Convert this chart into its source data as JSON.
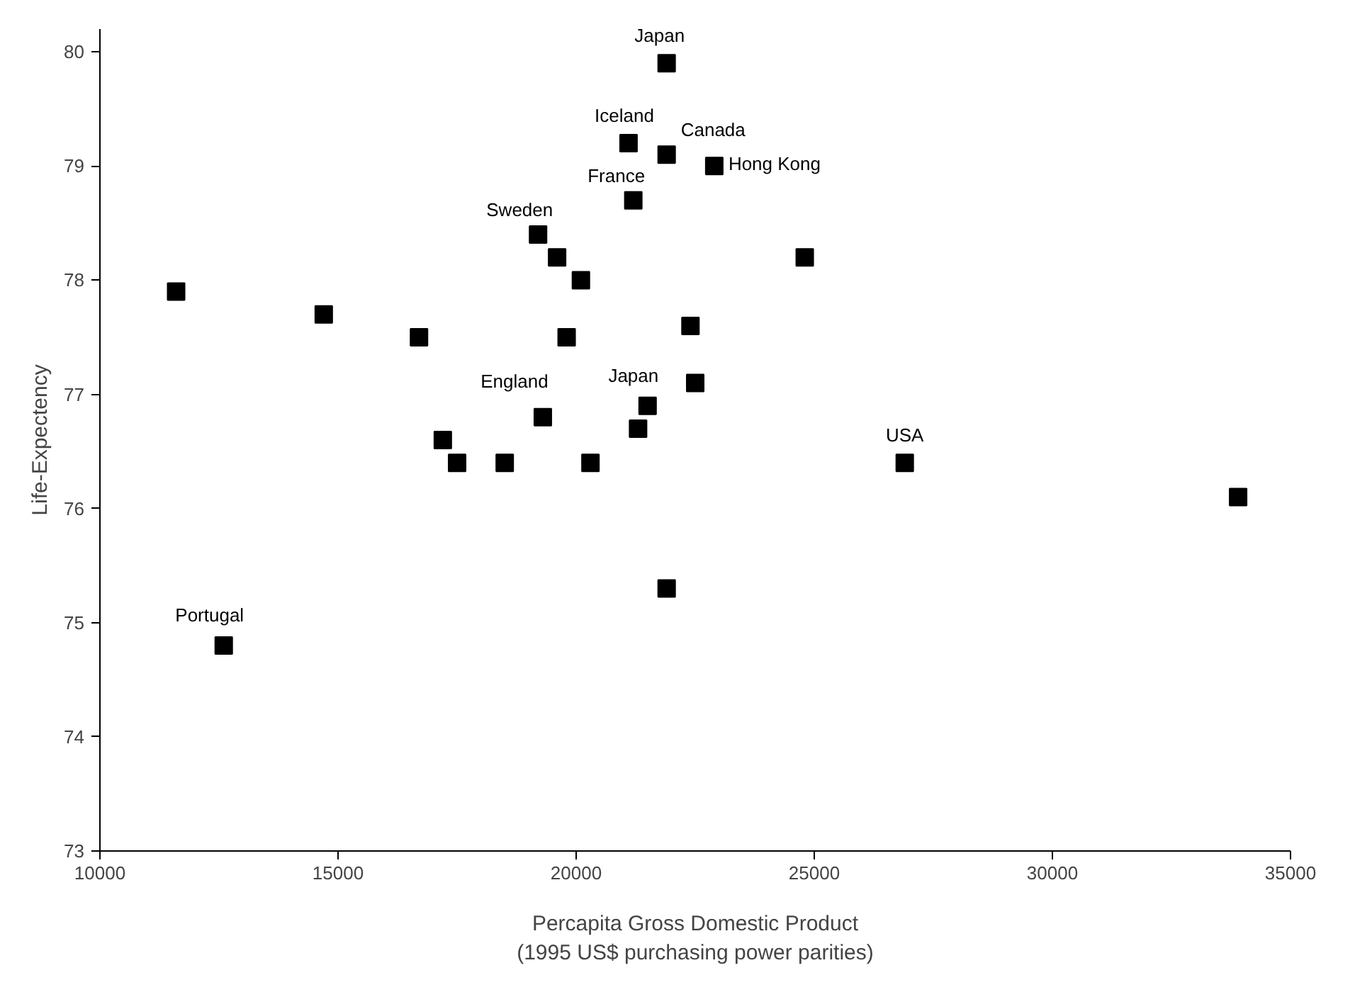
{
  "chart_data": {
    "type": "scatter",
    "xlabel": "Percapita Gross Domestic Product\n(1995 US$ purchasing power parities)",
    "ylabel": "Life-Expectency",
    "x": [
      21900,
      21100,
      21900,
      22900,
      21200,
      19200,
      19600,
      20100,
      24800,
      11600,
      14700,
      16700,
      19800,
      22400,
      22500,
      21500,
      21300,
      19300,
      17200,
      17500,
      18500,
      20300,
      26900,
      33900,
      21900,
      12600
    ],
    "values": [
      79.9,
      79.2,
      79.1,
      79.0,
      78.7,
      78.4,
      78.2,
      78.0,
      78.2,
      77.9,
      77.7,
      77.5,
      77.5,
      77.6,
      77.1,
      76.9,
      76.7,
      76.8,
      76.6,
      76.4,
      76.4,
      76.4,
      76.4,
      76.1,
      75.3,
      74.8
    ],
    "color": "#000000",
    "marker": "square",
    "xlim": [
      10000,
      35000
    ],
    "xticks": [
      10000,
      15000,
      20000,
      25000,
      30000,
      35000
    ],
    "ylim": [
      73,
      80.2
    ],
    "yticks": [
      73,
      74,
      75,
      76,
      77,
      78,
      79,
      80
    ],
    "grid": false,
    "annotations": [
      {
        "text": "Japan",
        "x": 21900,
        "y": 79.9
      },
      {
        "text": "Iceland",
        "x": 21100,
        "y": 79.2
      },
      {
        "text": "Canada",
        "x": 21900,
        "y": 79.1
      },
      {
        "text": "Hong Kong",
        "x": 22900,
        "y": 79.0
      },
      {
        "text": "France",
        "x": 21200,
        "y": 78.7
      },
      {
        "text": "Sweden",
        "x": 19200,
        "y": 78.4
      },
      {
        "text": "England",
        "x": 19300,
        "y": 76.8
      },
      {
        "text": "Japan",
        "x": 21500,
        "y": 76.9
      },
      {
        "text": "USA",
        "x": 26900,
        "y": 76.4
      },
      {
        "text": "Portugal",
        "x": 12600,
        "y": 74.8
      }
    ]
  }
}
